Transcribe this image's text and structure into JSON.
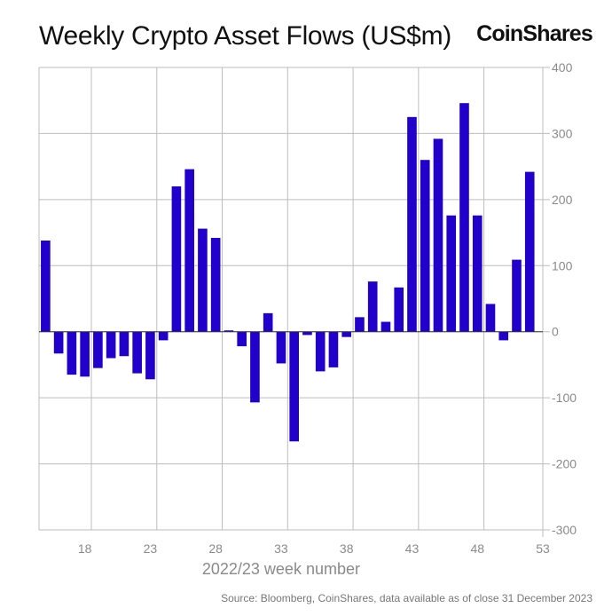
{
  "header": {
    "title": "Weekly Crypto Asset Flows (US$m)",
    "brand": "CoinShares"
  },
  "footer": {
    "source": "Source: Bloomberg, CoinShares, data available as of close 31 December 2023"
  },
  "colors": {
    "bar": "#2200cc",
    "grid": "#bdbdbd",
    "axis_text": "#8a8a8a"
  },
  "chart_data": {
    "type": "bar",
    "title": "Weekly Crypto Asset Flows (US$m)",
    "xlabel": "2022/23 week number",
    "ylabel": "",
    "ylim": [
      -300,
      400
    ],
    "xlim": [
      14.5,
      53
    ],
    "y_ticks": [
      400,
      300,
      200,
      100,
      0,
      -100,
      -200,
      -300
    ],
    "x_ticks": [
      18,
      23,
      28,
      33,
      38,
      43,
      48,
      53
    ],
    "y_axis_position": "right",
    "grid": true,
    "x": [
      15,
      16,
      17,
      18,
      19,
      20,
      21,
      22,
      23,
      24,
      25,
      26,
      27,
      28,
      29,
      30,
      31,
      32,
      33,
      34,
      35,
      36,
      37,
      38,
      39,
      40,
      41,
      42,
      43,
      44,
      45,
      46,
      47,
      48,
      49,
      50,
      51,
      52
    ],
    "values": [
      138,
      -33,
      -65,
      -68,
      -55,
      -40,
      -37,
      -63,
      -72,
      -13,
      220,
      246,
      156,
      142,
      2,
      -22,
      -107,
      28,
      -48,
      -166,
      -5,
      -60,
      -54,
      -8,
      22,
      76,
      15,
      67,
      325,
      260,
      292,
      176,
      346,
      176,
      42,
      -13,
      109,
      242
    ]
  }
}
